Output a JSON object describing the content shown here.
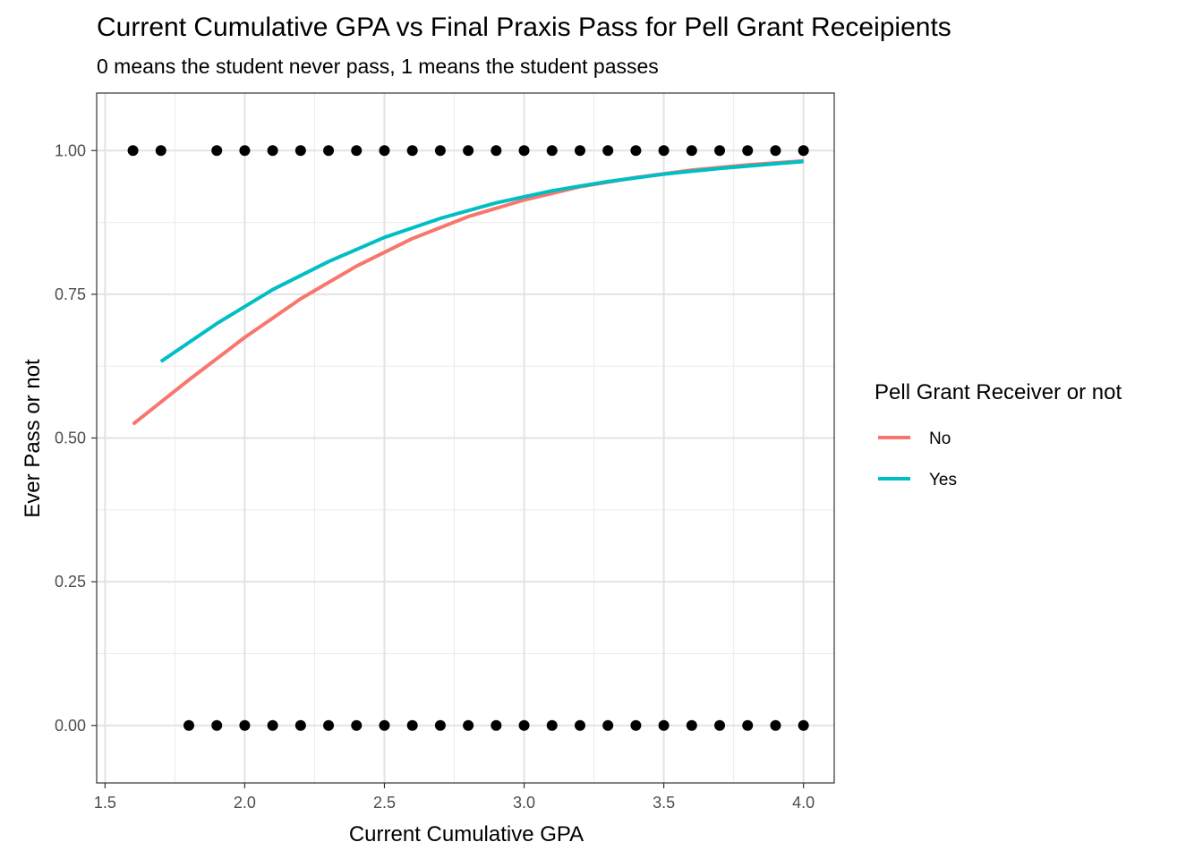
{
  "chart_data": {
    "type": "scatter",
    "title": "Current Cumulative GPA vs Final Praxis Pass for Pell Grant Receipients",
    "subtitle": "0 means the student never pass, 1 means the student passes",
    "xlabel": "Current Cumulative GPA",
    "ylabel": "Ever Pass or not",
    "xlim": [
      1.47,
      4.11
    ],
    "ylim": [
      -0.1,
      1.1
    ],
    "x_ticks": [
      "1.5",
      "2.0",
      "2.5",
      "3.0",
      "3.5",
      "4.0"
    ],
    "x_tick_values": [
      1.5,
      2.0,
      2.5,
      3.0,
      3.5,
      4.0
    ],
    "y_ticks": [
      "0.00",
      "0.25",
      "0.50",
      "0.75",
      "1.00"
    ],
    "y_tick_values": [
      0,
      0.25,
      0.5,
      0.75,
      1.0
    ],
    "grid": true,
    "legend_position": "right",
    "legend_title": "Pell Grant Receiver or not",
    "points": {
      "color": "#000000",
      "y1_x": [
        1.6,
        1.7,
        1.9,
        2.0,
        2.1,
        2.2,
        2.3,
        2.4,
        2.5,
        2.6,
        2.7,
        2.8,
        2.9,
        3.0,
        3.1,
        3.2,
        3.3,
        3.4,
        3.5,
        3.6,
        3.7,
        3.8,
        3.9,
        4.0
      ],
      "y0_x": [
        1.8,
        1.9,
        2.0,
        2.1,
        2.2,
        2.3,
        2.4,
        2.5,
        2.6,
        2.7,
        2.8,
        2.9,
        3.0,
        3.1,
        3.2,
        3.3,
        3.4,
        3.5,
        3.6,
        3.7,
        3.8,
        3.9,
        4.0
      ]
    },
    "series": [
      {
        "name": "No",
        "type": "line",
        "color": "#F8766D",
        "x": [
          1.6,
          1.8,
          2.0,
          2.2,
          2.4,
          2.6,
          2.8,
          3.0,
          3.2,
          3.4,
          3.6,
          3.8,
          4.0
        ],
        "y": [
          0.524,
          0.601,
          0.675,
          0.742,
          0.799,
          0.847,
          0.885,
          0.914,
          0.937,
          0.953,
          0.966,
          0.975,
          0.982
        ]
      },
      {
        "name": "Yes",
        "type": "line",
        "color": "#00BFC4",
        "x": [
          1.7,
          1.9,
          2.1,
          2.3,
          2.5,
          2.7,
          2.9,
          3.1,
          3.3,
          3.5,
          3.7,
          3.9,
          4.0
        ],
        "y": [
          0.633,
          0.699,
          0.758,
          0.807,
          0.849,
          0.882,
          0.909,
          0.93,
          0.946,
          0.959,
          0.969,
          0.977,
          0.981
        ]
      }
    ]
  }
}
